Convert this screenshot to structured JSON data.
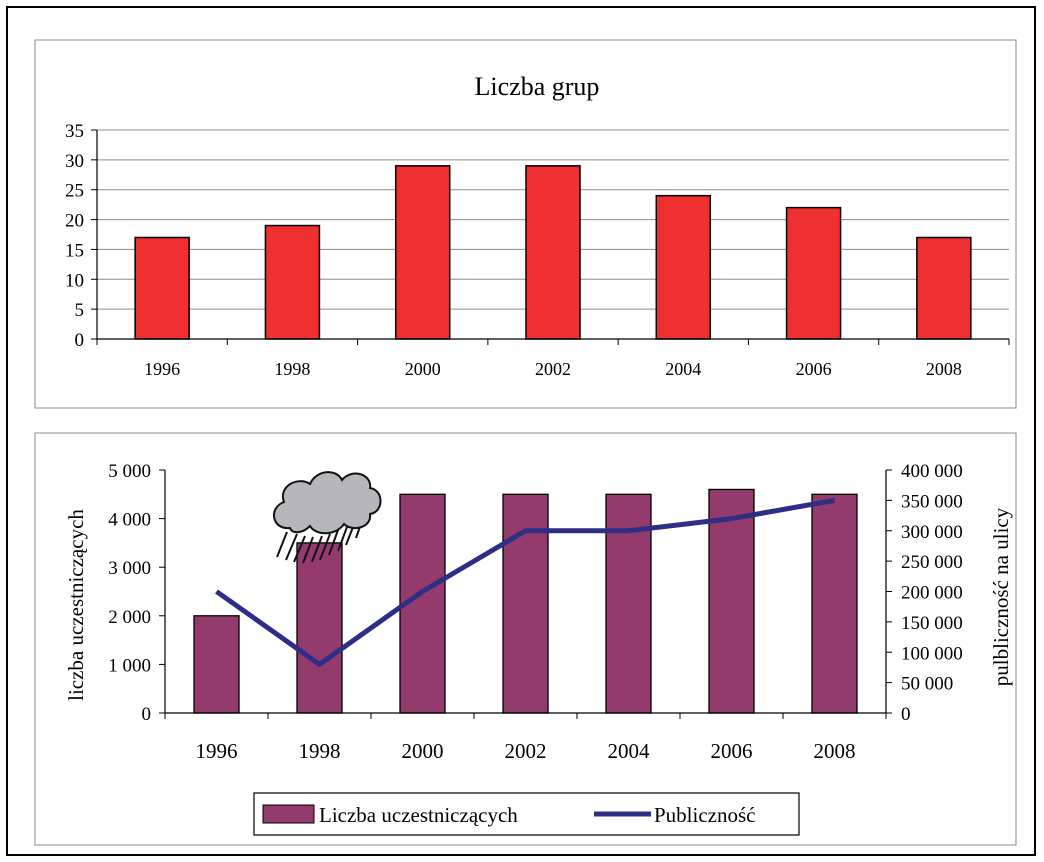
{
  "chart_data": [
    {
      "type": "bar",
      "title": "Liczba grup",
      "categories": [
        "1996",
        "1998",
        "2000",
        "2002",
        "2004",
        "2006",
        "2008"
      ],
      "values": [
        17,
        19,
        29,
        29,
        24,
        22,
        17
      ],
      "ylim": [
        0,
        35
      ],
      "yticks": [
        0,
        5,
        10,
        15,
        20,
        25,
        30,
        35
      ],
      "grid": true,
      "bar_color": "#ee3030"
    },
    {
      "type": "bar+line",
      "categories": [
        "1996",
        "1998",
        "2000",
        "2002",
        "2004",
        "2006",
        "2008"
      ],
      "ylabel": "liczba uczestniczących",
      "ylabel_right": "pulbliczność na ulicy",
      "ylim": [
        0,
        5000
      ],
      "yticks": [
        "0",
        "1 000",
        "2 000",
        "3 000",
        "4 000",
        "5 000"
      ],
      "ylim_right": [
        0,
        400000
      ],
      "yticks_right": [
        "0",
        "50 000",
        "100 000",
        "150 000",
        "200 000",
        "250 000",
        "300 000",
        "350 000",
        "400 000"
      ],
      "grid": false,
      "legend_position": "bottom",
      "series": [
        {
          "name": "Liczba uczestniczących",
          "type": "bar",
          "axis": "left",
          "color": "#943b6e",
          "values": [
            2000,
            3500,
            4500,
            4500,
            4500,
            4600,
            4500
          ]
        },
        {
          "name": "Publiczność",
          "type": "line",
          "axis": "right",
          "color": "#2e2e86",
          "values": [
            200000,
            80000,
            200000,
            300000,
            300000,
            320000,
            350000
          ]
        }
      ],
      "annotation_icon": "rain-cloud-icon"
    }
  ]
}
